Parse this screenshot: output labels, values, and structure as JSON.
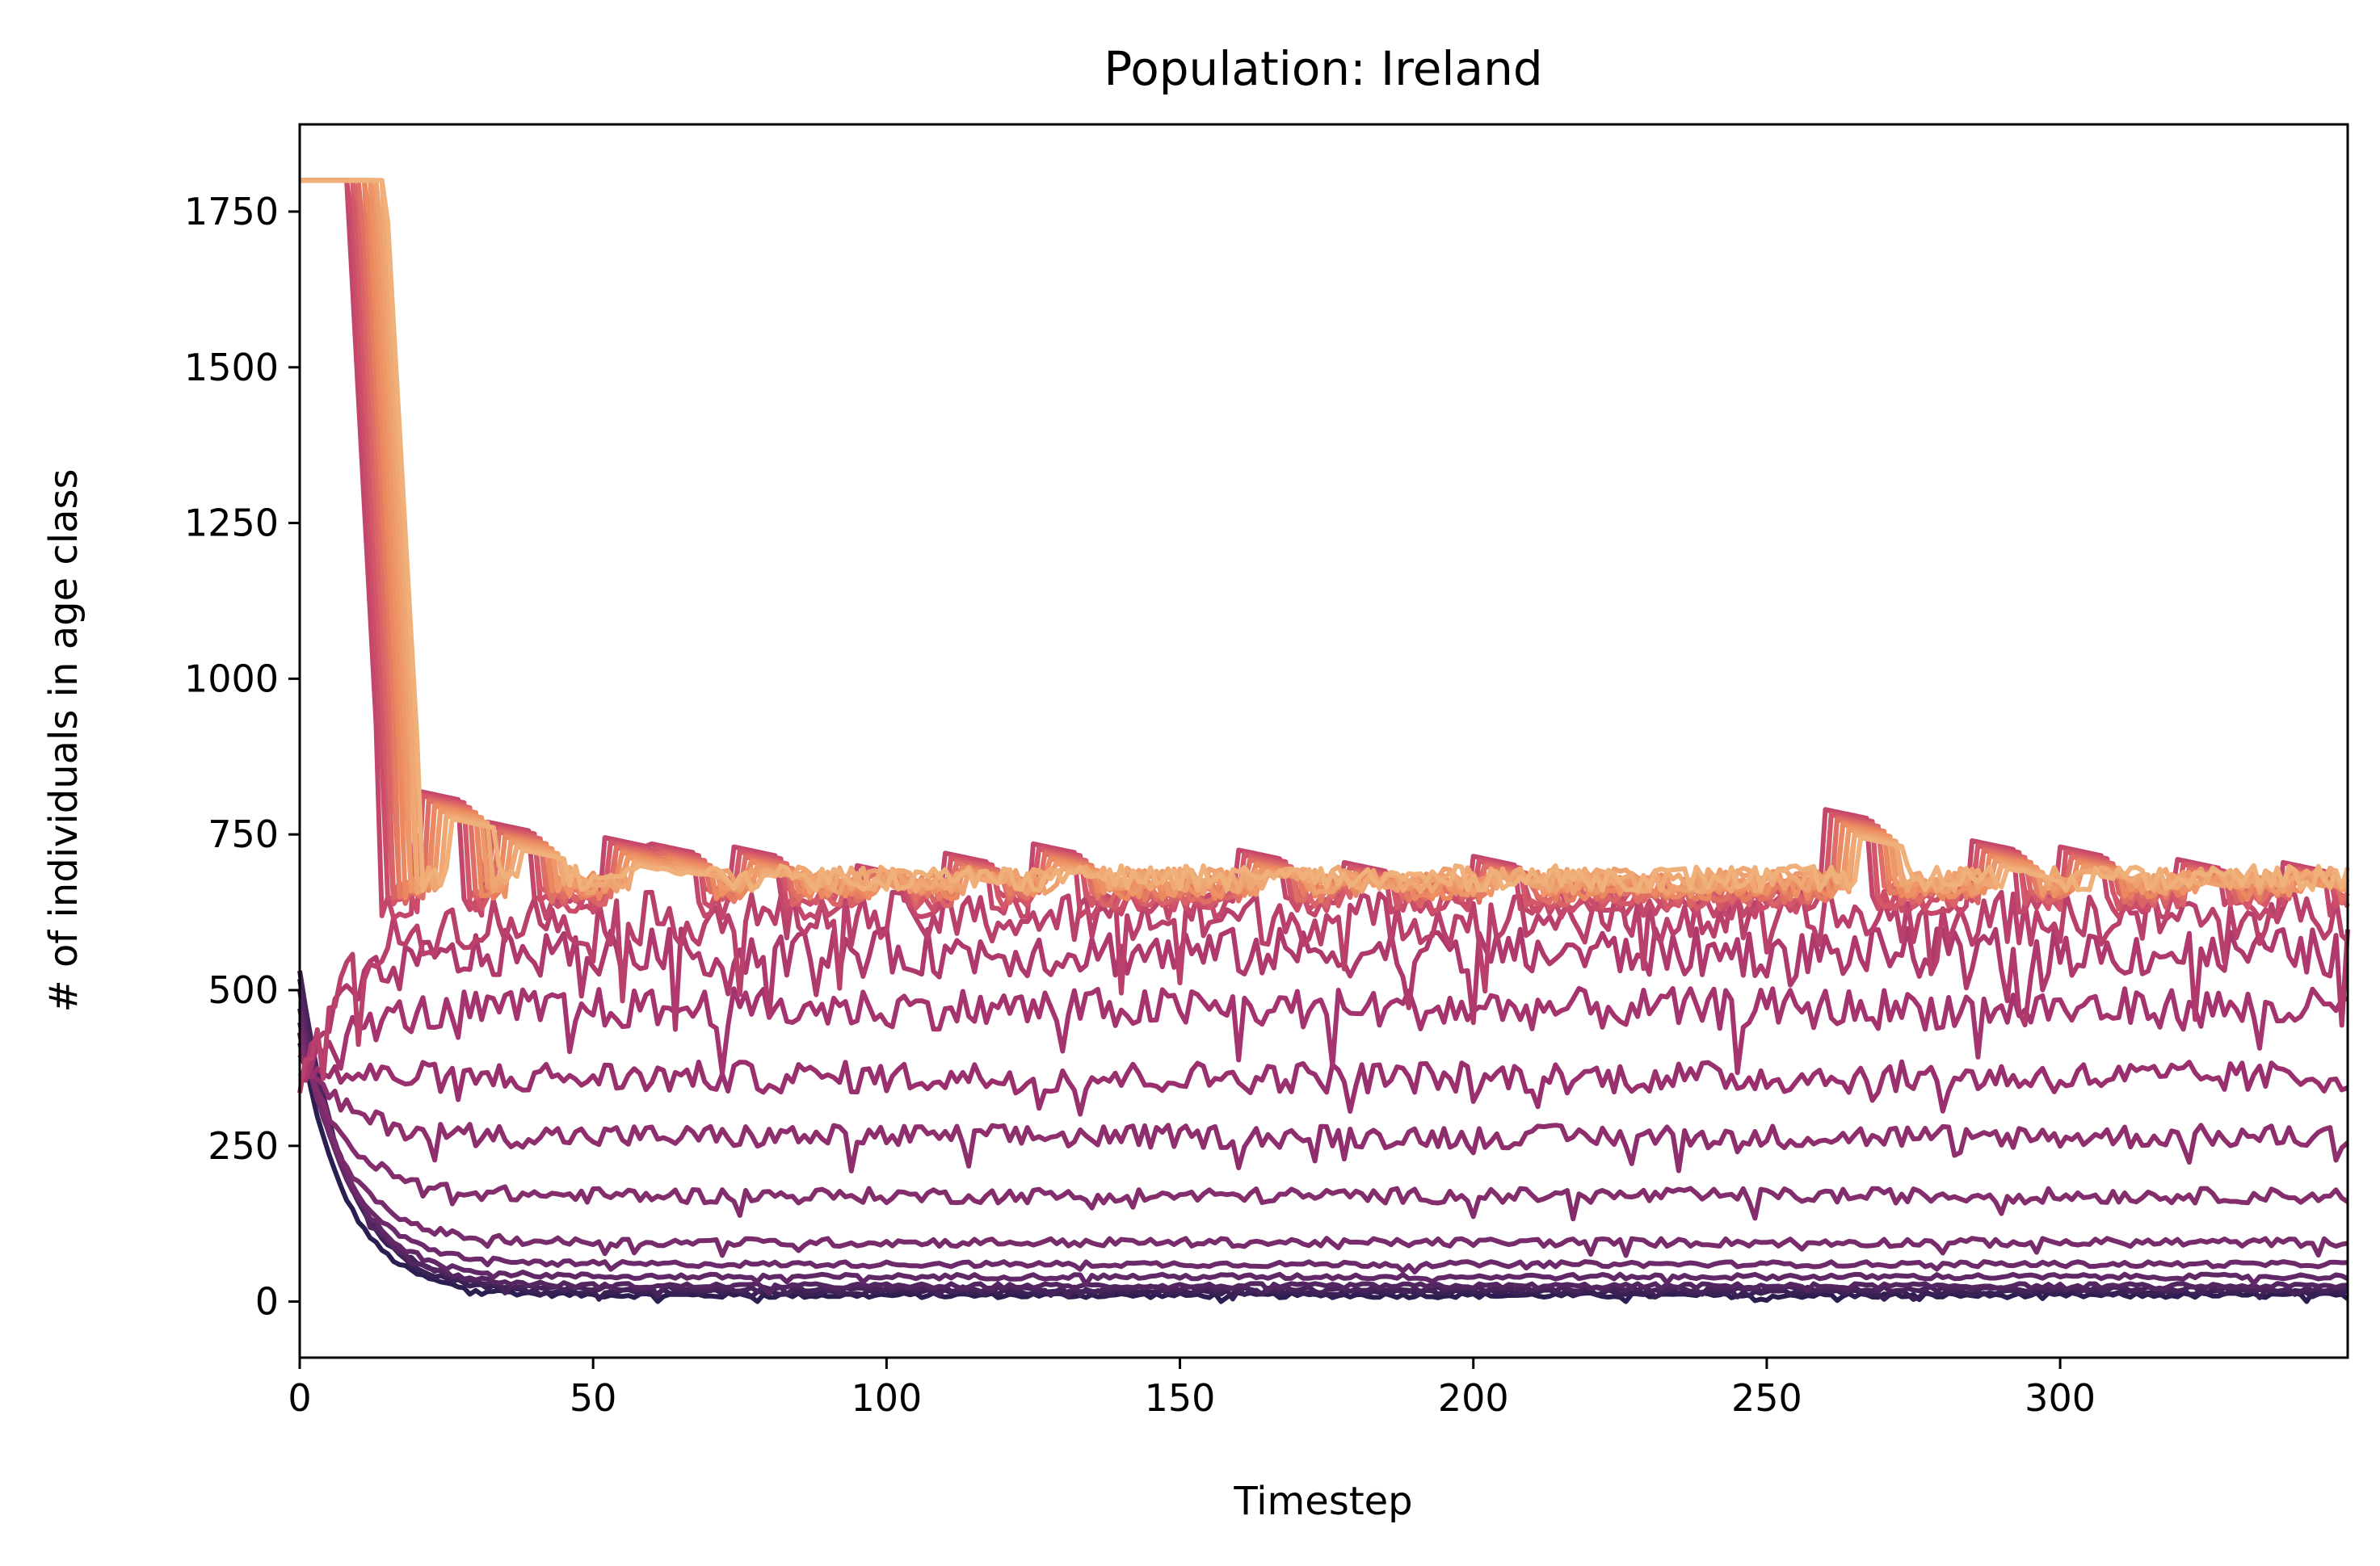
{
  "chart_data": {
    "type": "line",
    "title": "Population: Ireland",
    "xlabel": "Timestep",
    "ylabel": "# of individuals in age class",
    "xlim": [
      0,
      349
    ],
    "ylim": [
      -90,
      1890
    ],
    "xticks": [
      0,
      50,
      100,
      150,
      200,
      250,
      300
    ],
    "yticks": [
      0,
      250,
      500,
      750,
      1000,
      1250,
      1500,
      1750
    ],
    "grid": false,
    "legend": "none",
    "colormap": "flare",
    "color_range": [
      "#2c1e50",
      "#6a2a6b",
      "#a1306e",
      "#d0506a",
      "#ec8a5e",
      "#f0b07a"
    ],
    "series_count": 25,
    "series_levels": [
      10,
      15,
      20,
      25,
      40,
      60,
      95,
      170,
      265,
      360,
      470,
      560,
      615,
      635,
      645,
      650,
      655,
      660,
      663,
      666,
      669,
      672,
      675,
      678,
      680
    ],
    "series_start_values": [
      430,
      520,
      530,
      500,
      470,
      450,
      430,
      410,
      390,
      370,
      360,
      350,
      340,
      1800,
      1800,
      1800,
      1800,
      1800,
      1800,
      1800,
      1800,
      1800,
      1800,
      1800,
      1800
    ],
    "notes_on_shape": "Older age-class lines start near 1800 at timestep 0-10, drop to ~600-830 by timestep ~20, then fluctuate around 600-780 with periodic step peaks; younger classes fluctuate noisily around their levels."
  }
}
